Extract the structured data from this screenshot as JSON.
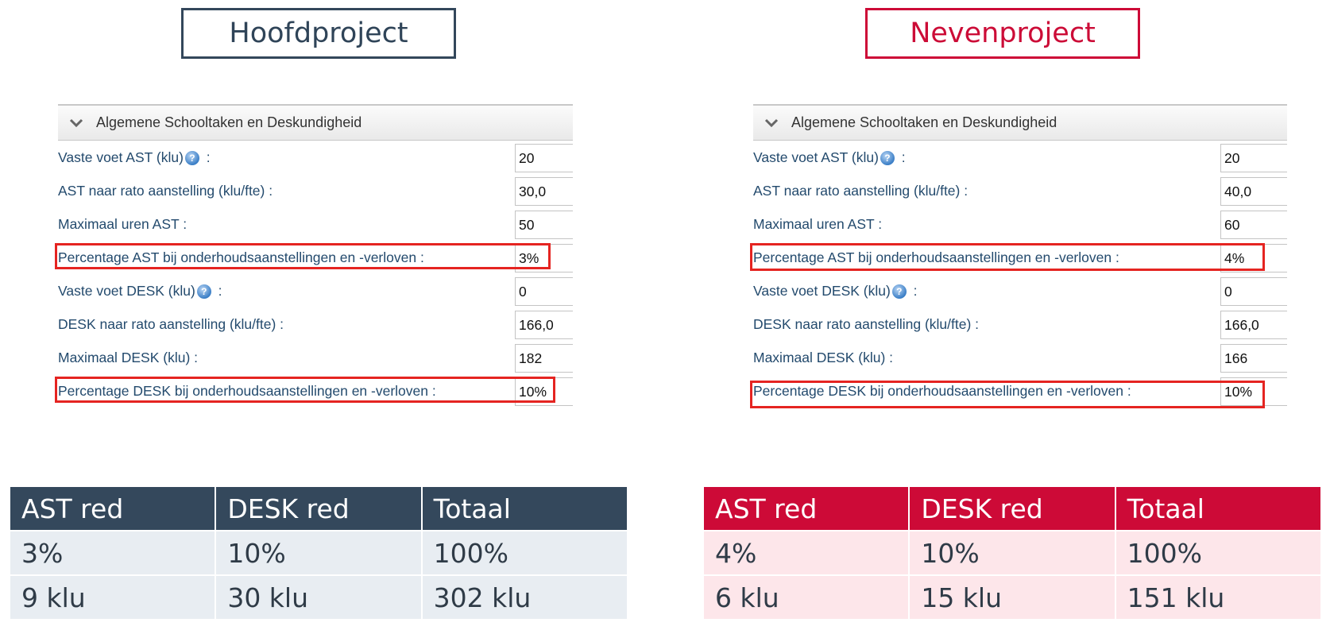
{
  "left": {
    "title": "Hoofdproject",
    "panel": {
      "header": "Algemene Schooltaken en Deskundigheid",
      "rows": [
        {
          "label": "Vaste voet AST (klu)",
          "suffix": " :",
          "value": "20"
        },
        {
          "label": "AST naar rato aanstelling (klu/fte) :",
          "value": "30,0"
        },
        {
          "label": "Maximaal uren AST :",
          "value": "50"
        },
        {
          "label": "Percentage AST bij onderhoudsaanstellingen en -verloven :",
          "value": "3%"
        },
        {
          "label": "Vaste voet DESK (klu)",
          "suffix": " :",
          "value": "0"
        },
        {
          "label": "DESK naar rato aanstelling (klu/fte) :",
          "value": "166,0"
        },
        {
          "label": "Maximaal DESK (klu) :",
          "value": "182"
        },
        {
          "label": "Percentage DESK bij onderhoudsaanstellingen en -verloven :",
          "value": "10%"
        }
      ]
    },
    "table": {
      "headers": [
        "AST red",
        "DESK red",
        "Totaal"
      ],
      "rows": [
        [
          "3%",
          "10%",
          "100%"
        ],
        [
          "9 klu",
          "30 klu",
          "302 klu"
        ]
      ]
    }
  },
  "right": {
    "title": "Nevenproject",
    "panel": {
      "header": "Algemene Schooltaken en Deskundigheid",
      "rows": [
        {
          "label": "Vaste voet AST (klu)",
          "suffix": " :",
          "value": "20"
        },
        {
          "label": "AST naar rato aanstelling (klu/fte) :",
          "value": "40,0"
        },
        {
          "label": "Maximaal uren AST :",
          "value": "60"
        },
        {
          "label": "Percentage AST bij onderhoudsaanstellingen en -verloven :",
          "value": "4%"
        },
        {
          "label": "Vaste voet DESK (klu)",
          "suffix": " :",
          "value": "0"
        },
        {
          "label": "DESK naar rato aanstelling (klu/fte) :",
          "value": "166,0"
        },
        {
          "label": "Maximaal DESK (klu) :",
          "value": "166"
        },
        {
          "label": "Percentage DESK bij onderhoudsaanstellingen en -verloven :",
          "value": "10%"
        }
      ]
    },
    "table": {
      "headers": [
        "AST red",
        "DESK red",
        "Totaal"
      ],
      "rows": [
        [
          "4%",
          "10%",
          "100%"
        ],
        [
          "6 klu",
          "15 klu",
          "151 klu"
        ]
      ]
    }
  },
  "colors": {
    "left_accent": "#34485c",
    "right_accent": "#cd0a37",
    "highlight": "#e52421"
  },
  "icons": {
    "help": "help-icon",
    "collapse": "chevron-down-icon"
  }
}
